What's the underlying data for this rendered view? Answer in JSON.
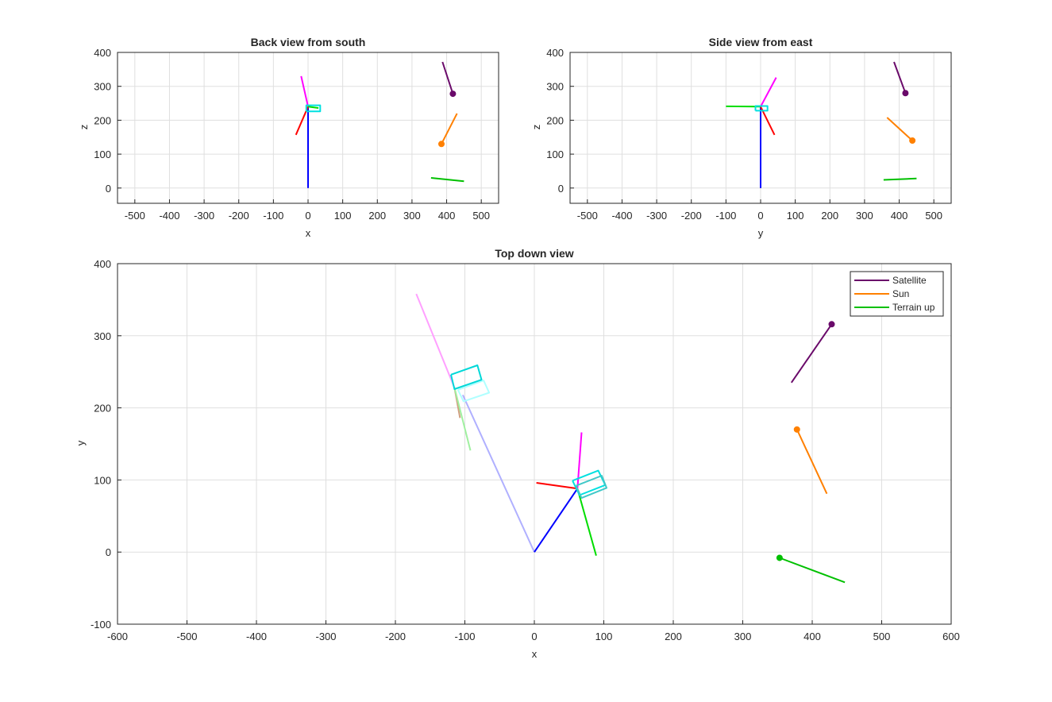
{
  "chart_data": [
    {
      "type": "line",
      "name": "back",
      "title": "Back view from south",
      "xlabel": "x",
      "ylabel": "z",
      "xlim": [
        -550,
        550
      ],
      "ylim": [
        -45,
        400
      ],
      "xticks": [
        -500,
        -400,
        -300,
        -200,
        -100,
        0,
        100,
        200,
        300,
        400,
        500
      ],
      "yticks": [
        0,
        100,
        200,
        300,
        400
      ],
      "grid": true,
      "series": [
        {
          "color": "#0000ff",
          "points": [
            [
              0,
              0
            ],
            [
              0,
              240
            ]
          ]
        },
        {
          "color": "#ff00ff",
          "points": [
            [
              -20,
              330
            ],
            [
              0,
              240
            ]
          ]
        },
        {
          "color": "#ff0000",
          "points": [
            [
              -35,
              157
            ],
            [
              0,
              240
            ]
          ]
        },
        {
          "color": "#00dd00",
          "points": [
            [
              0,
              240
            ],
            [
              30,
              236
            ]
          ]
        },
        {
          "color": "#00e0e0",
          "points": [
            [
              -5,
              226
            ],
            [
              35,
              226
            ],
            [
              35,
              244
            ],
            [
              -5,
              244
            ],
            [
              -5,
              226
            ]
          ]
        },
        {
          "color": "#6a0a6a",
          "points": [
            [
              388,
              372
            ],
            [
              418,
              278
            ]
          ],
          "marker": [
            418,
            278
          ]
        },
        {
          "color": "#ff8000",
          "points": [
            [
              430,
              220
            ],
            [
              385,
              130
            ]
          ],
          "marker": [
            385,
            130
          ]
        },
        {
          "color": "#00c000",
          "points": [
            [
              355,
              30
            ],
            [
              450,
              20
            ]
          ]
        }
      ]
    },
    {
      "type": "line",
      "name": "side",
      "title": "Side view from east",
      "xlabel": "y",
      "ylabel": "z",
      "xlim": [
        -550,
        550
      ],
      "ylim": [
        -45,
        400
      ],
      "xticks": [
        -500,
        -400,
        -300,
        -200,
        -100,
        0,
        100,
        200,
        300,
        400,
        500
      ],
      "yticks": [
        0,
        100,
        200,
        300,
        400
      ],
      "grid": true,
      "series": [
        {
          "color": "#0000ff",
          "points": [
            [
              0,
              0
            ],
            [
              0,
              240
            ]
          ]
        },
        {
          "color": "#ff00ff",
          "points": [
            [
              45,
              326
            ],
            [
              0,
              240
            ]
          ]
        },
        {
          "color": "#ff0000",
          "points": [
            [
              40,
              157
            ],
            [
              0,
              240
            ]
          ]
        },
        {
          "color": "#00dd00",
          "points": [
            [
              -100,
              241
            ],
            [
              0,
              240
            ]
          ]
        },
        {
          "color": "#00e0e0",
          "points": [
            [
              -15,
              228
            ],
            [
              20,
              228
            ],
            [
              20,
              242
            ],
            [
              -15,
              242
            ],
            [
              -15,
              228
            ]
          ]
        },
        {
          "color": "#6a0a6a",
          "points": [
            [
              385,
              372
            ],
            [
              418,
              280
            ]
          ],
          "marker": [
            418,
            280
          ]
        },
        {
          "color": "#ff8000",
          "points": [
            [
              365,
              208
            ],
            [
              438,
              140
            ]
          ],
          "marker": [
            438,
            140
          ]
        },
        {
          "color": "#00c000",
          "points": [
            [
              355,
              24
            ],
            [
              450,
              28
            ]
          ]
        }
      ]
    },
    {
      "type": "line",
      "name": "top",
      "title": "Top down view",
      "xlabel": "x",
      "ylabel": "y",
      "xlim": [
        -600,
        600
      ],
      "ylim": [
        -100,
        400
      ],
      "xticks": [
        -600,
        -500,
        -400,
        -300,
        -200,
        -100,
        0,
        100,
        200,
        300,
        400,
        500,
        600
      ],
      "yticks": [
        -100,
        0,
        100,
        200,
        300,
        400
      ],
      "grid": true,
      "legend": "top-right",
      "legend_entries": [
        {
          "label": "Satellite",
          "color": "#6a0a6a"
        },
        {
          "label": "Sun",
          "color": "#ff8000"
        },
        {
          "label": "Terrain up",
          "color": "#00c000"
        }
      ],
      "series": [
        {
          "color": "#b0b0ff",
          "points": [
            [
              0,
              0
            ],
            [
              -103,
              218
            ]
          ]
        },
        {
          "color": "#ffa0ff",
          "points": [
            [
              -170,
              358
            ],
            [
              -115,
              228
            ]
          ]
        },
        {
          "color": "#d0a080",
          "points": [
            [
              -115,
              228
            ],
            [
              -107,
              186
            ]
          ]
        },
        {
          "color": "#a0f0a0",
          "points": [
            [
              -115,
              228
            ],
            [
              -92,
              141
            ]
          ]
        },
        {
          "color": "#b0ffff",
          "points": [
            [
              -110,
              225
            ],
            [
              -73,
              238
            ],
            [
              -65,
              221
            ],
            [
              -102,
              209
            ],
            [
              -110,
              225
            ]
          ]
        },
        {
          "color": "#00d8d8",
          "points": [
            [
              -120,
              246
            ],
            [
              -82,
              259
            ],
            [
              -76,
              239
            ],
            [
              -115,
              226
            ],
            [
              -120,
              246
            ]
          ]
        },
        {
          "color": "#0000ff",
          "points": [
            [
              0,
              0
            ],
            [
              62,
              88
            ]
          ]
        },
        {
          "color": "#ff00ff",
          "points": [
            [
              68,
              166
            ],
            [
              62,
              88
            ]
          ]
        },
        {
          "color": "#ff0000",
          "points": [
            [
              3,
              96
            ],
            [
              62,
              88
            ]
          ]
        },
        {
          "color": "#00dd00",
          "points": [
            [
              62,
              88
            ],
            [
              89,
              -5
            ]
          ]
        },
        {
          "color": "#00e0e0",
          "points": [
            [
              55,
              99
            ],
            [
              92,
              113
            ],
            [
              102,
              93
            ],
            [
              65,
              79
            ],
            [
              55,
              99
            ]
          ]
        },
        {
          "color": "#40c8c8",
          "points": [
            [
              60,
              92
            ],
            [
              97,
              106
            ],
            [
              104,
              89
            ],
            [
              68,
              75
            ],
            [
              60,
              92
            ]
          ]
        },
        {
          "color": "#6a0a6a",
          "points": [
            [
              370,
              235
            ],
            [
              428,
              316
            ]
          ],
          "marker": [
            428,
            316
          ]
        },
        {
          "color": "#ff8000",
          "points": [
            [
              421,
              81
            ],
            [
              378,
              170
            ]
          ],
          "marker": [
            378,
            170
          ]
        },
        {
          "color": "#00c000",
          "points": [
            [
              353,
              -8
            ],
            [
              447,
              -42
            ]
          ],
          "marker": [
            353,
            -8
          ]
        }
      ]
    }
  ]
}
